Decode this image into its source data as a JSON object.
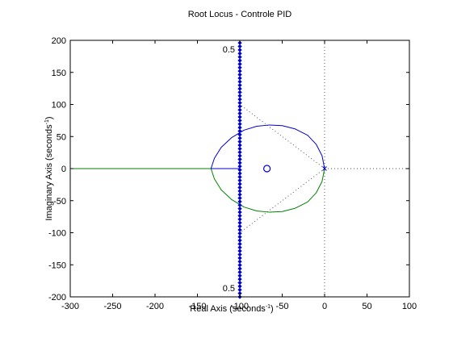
{
  "window": {
    "background": "#ffffff"
  },
  "chart_data": {
    "type": "line",
    "title": "Root Locus - Controle PID",
    "xlabel": {
      "main": "Real Axis (seconds",
      "sup": "-1",
      "close": ")"
    },
    "ylabel": {
      "main": "Imaginary Axis (seconds",
      "sup": "-1",
      "close": ")"
    },
    "xlim": [
      -300,
      100
    ],
    "ylim": [
      -200,
      200
    ],
    "xticks": [
      -300,
      -250,
      -200,
      -150,
      -100,
      -50,
      0,
      50,
      100
    ],
    "xtick_labels": [
      "-300",
      "-250",
      "-200",
      "-150",
      "-100",
      "-50",
      "0",
      "50",
      "100"
    ],
    "yticks": [
      200,
      150,
      100,
      50,
      0,
      -50,
      -100,
      -150,
      -200
    ],
    "ytick_labels": [
      "200",
      "150",
      "100",
      "50",
      "0",
      "-50",
      "-100",
      "-150",
      "-200"
    ],
    "grid": false,
    "legend": "none",
    "series": [
      {
        "branch": "upper",
        "color": "#0000cc",
        "x": [
          0,
          -3,
          -10,
          -20,
          -35,
          -50,
          -65,
          -80,
          -95,
          -110,
          -122,
          -130,
          -134
        ],
        "y": [
          0,
          20,
          38,
          52,
          62,
          67,
          68,
          66,
          60,
          48,
          33,
          16,
          0
        ]
      },
      {
        "branch": "lower",
        "color": "#008000",
        "x": [
          0,
          -3,
          -10,
          -20,
          -35,
          -50,
          -65,
          -80,
          -95,
          -110,
          -122,
          -130,
          -134
        ],
        "y": [
          0,
          -20,
          -38,
          -52,
          -62,
          -67,
          -68,
          -66,
          -60,
          -48,
          -33,
          -16,
          0
        ]
      },
      {
        "branch": "real-axis",
        "color": "#0000cc",
        "x": [
          -134,
          -100
        ],
        "y": [
          0,
          0
        ]
      },
      {
        "branch": "real-axis",
        "color": "#008000",
        "x": [
          -300,
          -134
        ],
        "y": [
          0,
          0
        ]
      }
    ],
    "zeros": [
      {
        "x": -68,
        "y": 0,
        "color": "#0000cc"
      }
    ],
    "poles": [
      {
        "x": 0,
        "y": 0,
        "color": "#0000cc"
      }
    ],
    "constraint_line": {
      "x": -100,
      "y_range": [
        -200,
        200
      ],
      "step": 5.5,
      "color": "#0000cc"
    },
    "damping_lines": {
      "slopes": [
        1,
        -1
      ],
      "color": "#555555"
    },
    "vertical_dotted": {
      "x": 0,
      "color": "#555555"
    },
    "horizontal_dotted": {
      "y": 0,
      "color": "#555555"
    },
    "annotations": [
      {
        "text": "0.5",
        "x": -100,
        "y": 186
      },
      {
        "text": "0.5",
        "x": -100,
        "y": -186
      }
    ]
  }
}
